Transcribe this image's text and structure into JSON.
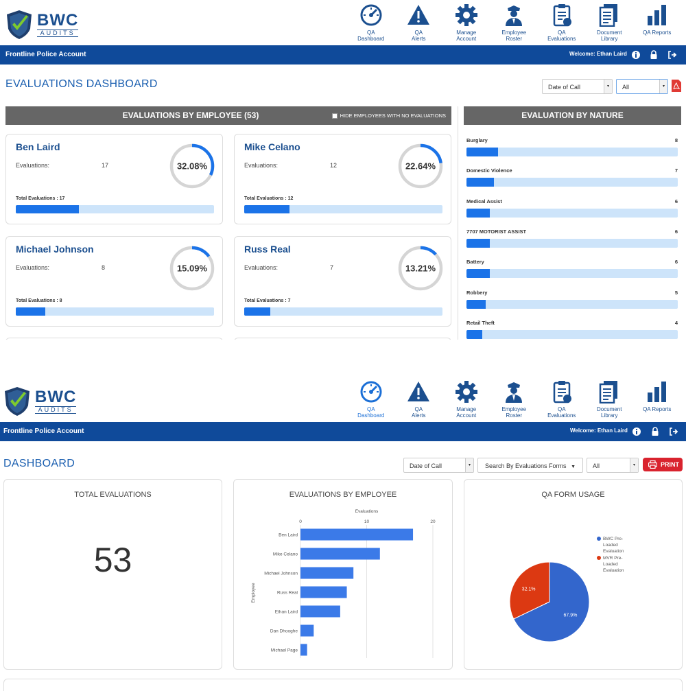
{
  "brand": {
    "name": "BWC",
    "sub": "AUDITS",
    "accent": "#0f4a9a",
    "title_color": "#1b5fb0"
  },
  "nav": [
    {
      "icon": "speedometer-icon",
      "line1": "QA",
      "line2": "Dashboard"
    },
    {
      "icon": "warning-icon",
      "line1": "QA",
      "line2": "Alerts"
    },
    {
      "icon": "gear-icon",
      "line1": "Manage",
      "line2": "Account"
    },
    {
      "icon": "officer-icon",
      "line1": "Employee",
      "line2": "Roster"
    },
    {
      "icon": "clipboard-icon",
      "line1": "QA",
      "line2": "Evaluations"
    },
    {
      "icon": "documents-icon",
      "line1": "Document",
      "line2": "Library"
    },
    {
      "icon": "bar-chart-icon",
      "line1": "QA Reports",
      "line2": ""
    }
  ],
  "account_bar": {
    "account": "Frontline Police Account",
    "welcome": "Welcome: Ethan Laird",
    "icons": [
      "info-icon",
      "lock-icon",
      "logout-icon"
    ]
  },
  "screen1": {
    "title": "EVALUATIONS DASHBOARD",
    "filter_date": "Date of Call",
    "filter_all": "All",
    "by_employee": {
      "header": "EVALUATIONS BY EMPLOYEE (53)",
      "hide_label": "HIDE EMPLOYEES WITH NO EVALUATIONS",
      "eval_label": "Evaluations:",
      "employees": [
        {
          "name": "Ben Laird",
          "count": "17",
          "percent": "32.08%",
          "pct": 32.08,
          "total": "Total Evaluations : 17",
          "fill": 0.32
        },
        {
          "name": "Mike Celano",
          "count": "12",
          "percent": "22.64%",
          "pct": 22.64,
          "total": "Total Evaluations : 12",
          "fill": 0.23
        },
        {
          "name": "Michael Johnson",
          "count": "8",
          "percent": "15.09%",
          "pct": 15.09,
          "total": "Total Evaluations : 8",
          "fill": 0.15
        },
        {
          "name": "Russ Real",
          "count": "7",
          "percent": "13.21%",
          "pct": 13.21,
          "total": "Total Evaluations : 7",
          "fill": 0.13
        }
      ]
    },
    "by_nature": {
      "header": "EVALUATION BY NATURE",
      "items": [
        {
          "label": "Burglary",
          "count": "8",
          "fill": 0.15
        },
        {
          "label": "Domestic Violence",
          "count": "7",
          "fill": 0.13
        },
        {
          "label": "Medical Assist",
          "count": "6",
          "fill": 0.11
        },
        {
          "label": "7707 MOTORIST ASSIST",
          "count": "6",
          "fill": 0.11
        },
        {
          "label": "Battery",
          "count": "6",
          "fill": 0.11
        },
        {
          "label": "Robbery",
          "count": "5",
          "fill": 0.09
        },
        {
          "label": "Retail Theft",
          "count": "4",
          "fill": 0.075
        }
      ]
    }
  },
  "screen2": {
    "title": "DASHBOARD",
    "filter_date": "Date of Call",
    "search_forms": "Search By Evaluations Forms",
    "filter_all": "All",
    "print_label": "PRINT",
    "total_title": "TOTAL EVALUATIONS",
    "total_value": "53",
    "emp_chart_title": "EVALUATIONS BY EMPLOYEE",
    "qa_title": "QA FORM USAGE"
  },
  "chart_data": [
    {
      "type": "bar",
      "orientation": "horizontal",
      "title": "EVALUATIONS BY EMPLOYEE",
      "xlabel": "Evaluations",
      "ylabel": "Employee",
      "categories": [
        "Ben Laird",
        "Mike Celano",
        "Michael Johnson",
        "Russ Real",
        "Ethan Laird",
        "Dan Dhooghe",
        "Michael Page"
      ],
      "values": [
        17,
        12,
        8,
        7,
        6,
        2,
        1
      ],
      "xlim": [
        0,
        20
      ],
      "ticks": [
        "0",
        "10",
        "20"
      ]
    },
    {
      "type": "pie",
      "title": "QA FORM USAGE",
      "labels": [
        "BWC Pre-Loaded Evaluation",
        "MVR Pre-Loaded Evaluation"
      ],
      "legend_lines": [
        [
          "BWC Pre-",
          "Loaded",
          "Evaluation"
        ],
        [
          "MVR Pre-",
          "Loaded",
          "Evaluation"
        ]
      ],
      "values": [
        67.9,
        32.1
      ],
      "slice_labels": [
        "67.9%",
        "32.1%"
      ],
      "colors": [
        "#3366cc",
        "#dc3912"
      ],
      "legend": "right"
    }
  ]
}
